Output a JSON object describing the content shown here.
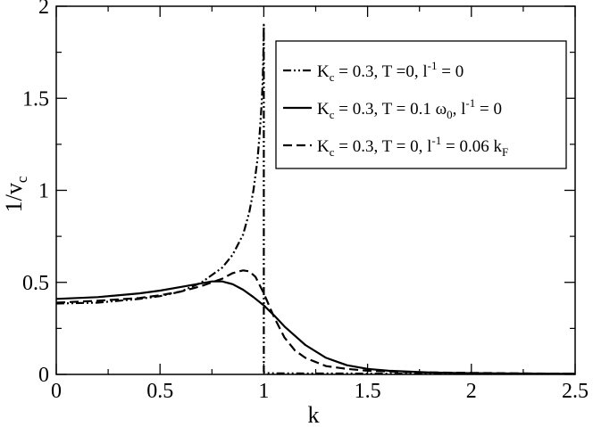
{
  "chart_data": {
    "type": "line",
    "title": "",
    "xlabel": "k",
    "ylabel": "1/v",
    "ylabel_subscript": "c",
    "xlim": [
      0,
      2.5
    ],
    "ylim": [
      0,
      2
    ],
    "x_ticks": [
      "0",
      "0.5",
      "1",
      "1.5",
      "2",
      "2.5"
    ],
    "y_ticks": [
      "0",
      "0.5",
      "1",
      "1.5",
      "2"
    ],
    "grid": false,
    "legend_position": "top-right",
    "series": [
      {
        "name": "K_c = 0.3, T =0, l^-1 = 0",
        "legend": {
          "pre": "K",
          "sub": "c",
          "mid": " = 0.3, T =0, l",
          "sup": "-1",
          "post": " = 0"
        },
        "style": "dashdotdot",
        "x": [
          0,
          0.2,
          0.4,
          0.5,
          0.6,
          0.7,
          0.8,
          0.85,
          0.9,
          0.93,
          0.95,
          0.97,
          0.98,
          0.99,
          0.995,
          0.998,
          1.0,
          1.0,
          1.0,
          1.001,
          1.01,
          1.03,
          1.06,
          1.1,
          1.2,
          1.3,
          1.4,
          1.5,
          1.7,
          2.0,
          2.3,
          2.5
        ],
        "values": [
          0.385,
          0.39,
          0.41,
          0.425,
          0.45,
          0.5,
          0.58,
          0.65,
          0.76,
          0.88,
          1.0,
          1.17,
          1.31,
          1.48,
          1.6,
          1.74,
          1.9,
          0.9,
          0.02,
          0.01,
          0.008,
          0.007,
          0.006,
          0.006,
          0.005,
          0.005,
          0.005,
          0.004,
          0.004,
          0.003,
          0.003,
          0.003
        ]
      },
      {
        "name": "K_c = 0.3, T = 0.1 ω_0, l^-1 = 0",
        "legend": {
          "pre": "K",
          "sub": "c",
          "mid": " = 0.3, T = 0.1 ω",
          "sub2": "0",
          "mid2": ", l",
          "sup": "-1",
          "post": " = 0"
        },
        "style": "solid",
        "x": [
          0,
          0.2,
          0.4,
          0.5,
          0.6,
          0.7,
          0.75,
          0.8,
          0.85,
          0.9,
          0.95,
          1.0,
          1.05,
          1.1,
          1.2,
          1.3,
          1.4,
          1.5,
          1.6,
          1.7,
          1.8,
          2.0,
          2.2,
          2.5
        ],
        "values": [
          0.41,
          0.42,
          0.44,
          0.455,
          0.475,
          0.495,
          0.505,
          0.505,
          0.49,
          0.46,
          0.42,
          0.375,
          0.32,
          0.26,
          0.16,
          0.09,
          0.05,
          0.03,
          0.02,
          0.015,
          0.01,
          0.007,
          0.005,
          0.003
        ]
      },
      {
        "name": "K_c = 0.3, T = 0, l^-1 = 0.06 k_F",
        "legend": {
          "pre": "K",
          "sub": "c",
          "mid": " = 0.3, T = 0, l",
          "sup": "-1",
          "post": " = 0.06 k",
          "sub3": "F"
        },
        "style": "dashed",
        "x": [
          0,
          0.2,
          0.4,
          0.5,
          0.6,
          0.7,
          0.8,
          0.85,
          0.9,
          0.93,
          0.96,
          1.0,
          1.05,
          1.1,
          1.15,
          1.2,
          1.3,
          1.4,
          1.5,
          1.7,
          2.0,
          2.3,
          2.5
        ],
        "values": [
          0.39,
          0.4,
          0.415,
          0.43,
          0.45,
          0.48,
          0.52,
          0.55,
          0.565,
          0.56,
          0.53,
          0.44,
          0.31,
          0.2,
          0.13,
          0.09,
          0.045,
          0.03,
          0.02,
          0.012,
          0.008,
          0.005,
          0.004
        ]
      }
    ]
  }
}
